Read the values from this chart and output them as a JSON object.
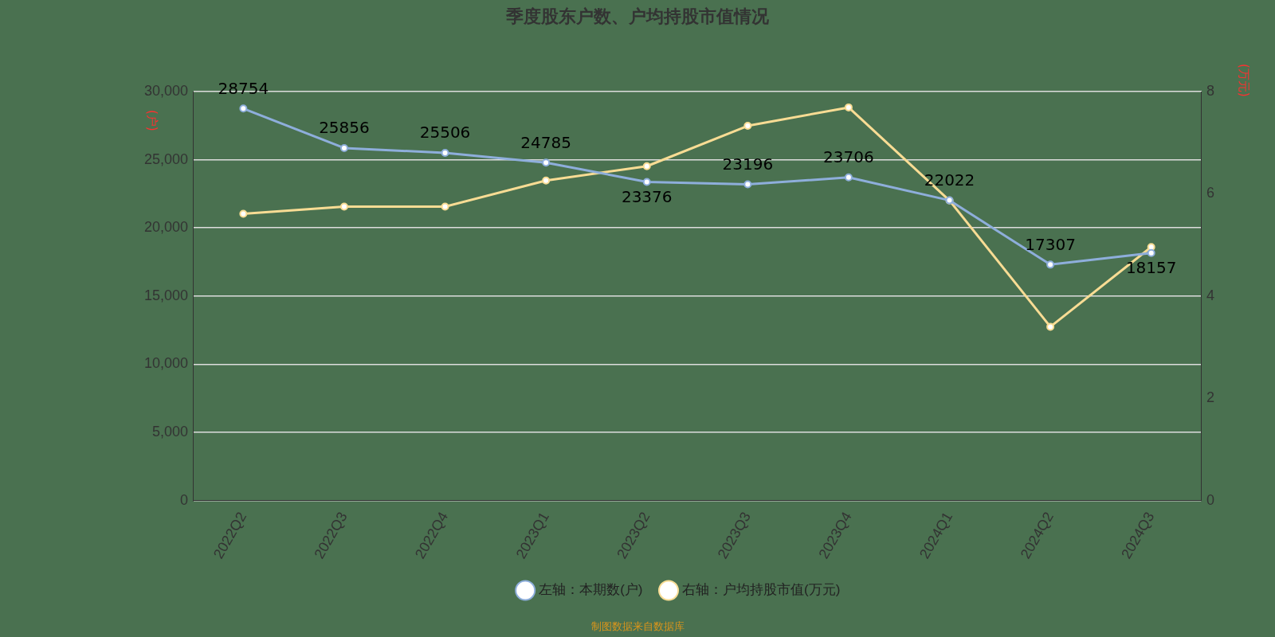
{
  "chart_data": {
    "type": "line",
    "title": "季度股东户数、户均持股市值情况",
    "ylabel": "(户)",
    "y2label": "(万元)",
    "categories": [
      "2022Q2",
      "2022Q3",
      "2022Q4",
      "2023Q1",
      "2023Q2",
      "2023Q3",
      "2023Q4",
      "2024Q1",
      "2024Q2",
      "2024Q3"
    ],
    "series": [
      {
        "name": "左轴：本期数(户)",
        "color": "#8eaedb",
        "values": [
          28754,
          25856,
          25506,
          24785,
          23376,
          23196,
          23706,
          22022,
          17307,
          18157
        ],
        "value_labels": [
          "28754",
          "25856",
          "25506",
          "24785",
          "23376",
          "23196",
          "23706",
          "22022",
          "17307",
          "18157"
        ]
      },
      {
        "name": "右轴：户均持股市值(万元)",
        "color": "#f8dc94",
        "axis": "y2",
        "values": [
          5.61,
          5.75,
          5.75,
          6.26,
          6.54,
          7.33,
          7.69,
          5.87,
          3.4,
          4.96
        ]
      }
    ],
    "ylim": [
      0,
      30000
    ],
    "yticks": [
      0,
      {
        "value": 5000,
        "label": "5,000"
      },
      {
        "value": 10000,
        "label": "10,000"
      },
      {
        "value": 15000,
        "label": "15,000"
      },
      {
        "value": 20000,
        "label": "20,000"
      },
      {
        "value": 25000,
        "label": "25,000"
      },
      {
        "value": 30000,
        "label": "30,000"
      }
    ],
    "y2lim": [
      0,
      8
    ],
    "y2ticks": [
      0,
      2,
      4,
      6,
      8
    ],
    "grid": "y",
    "legend": "bottom",
    "marker": "circle",
    "line_style": "solid",
    "annotations": [
      "制图数据来自数据库"
    ]
  }
}
